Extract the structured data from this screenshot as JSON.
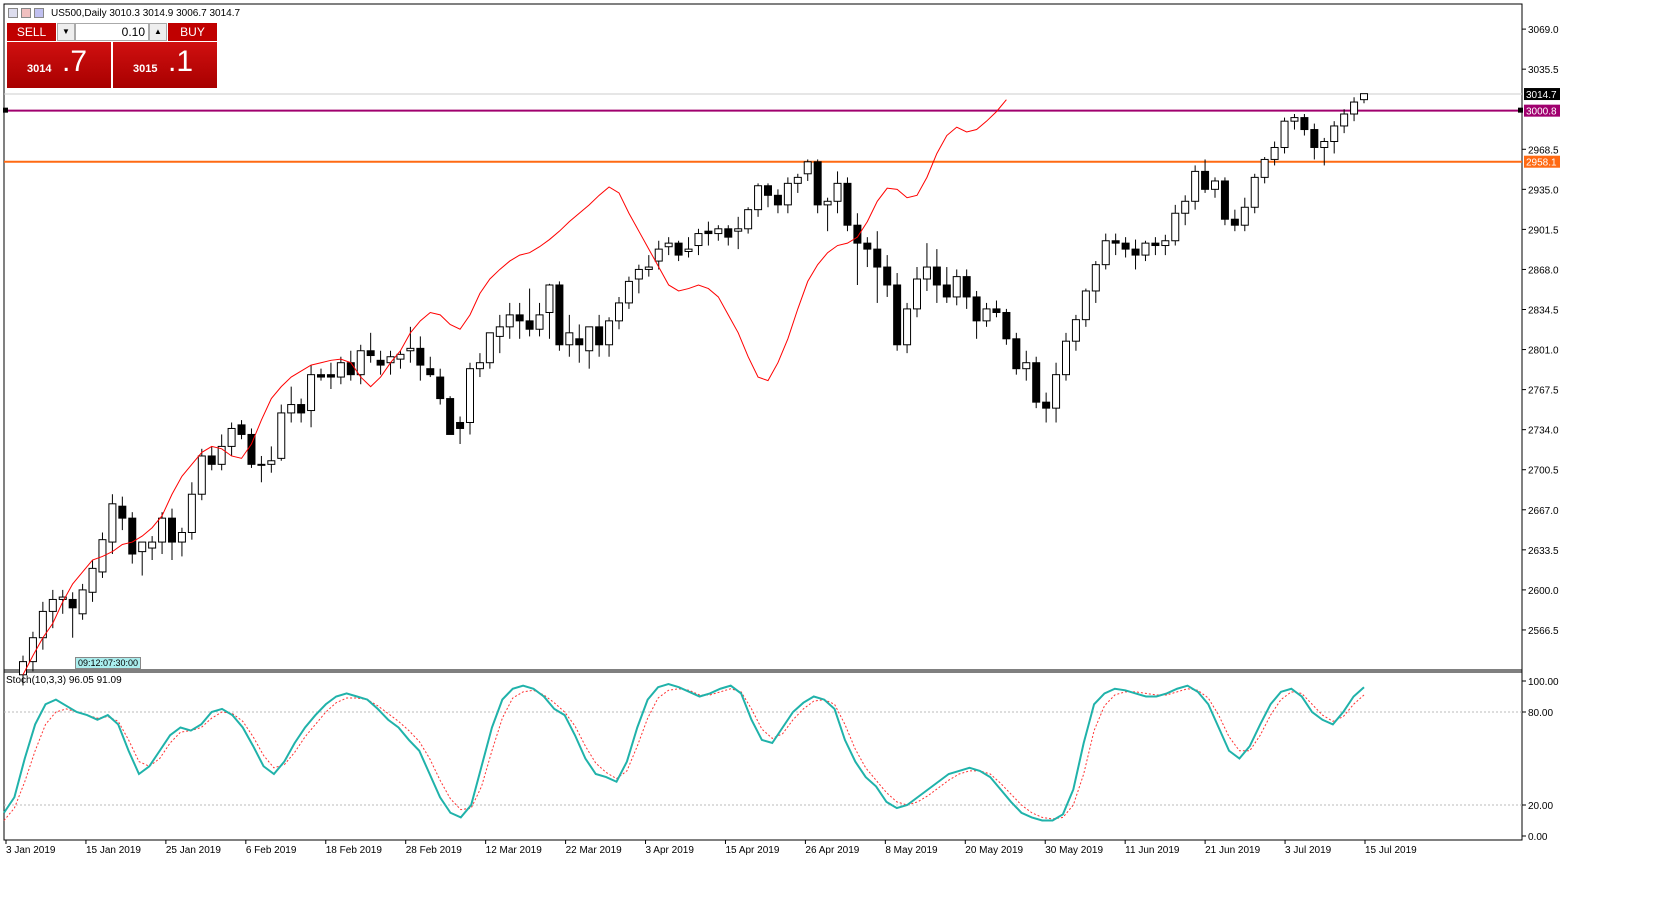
{
  "header": {
    "symbol_text": "US500,Daily  3010.3 3014.9 3006.7 3014.7",
    "icons": [
      "chart-icon",
      "one-click-icon",
      "trade-icon"
    ]
  },
  "trade_panel": {
    "sell_label": "SELL",
    "buy_label": "BUY",
    "lot_value": "0.10",
    "sell_price_big": "3014",
    "sell_price_small": ".7",
    "buy_price_big": "3015",
    "buy_price_small": ".1",
    "color": "#c00000"
  },
  "time_box": "09:12:07:30:00",
  "colors": {
    "resistance_line": "#a0006e",
    "support_line": "#ff6a13",
    "ma_line": "#ff0000",
    "stoch_main": "#20b2aa",
    "stoch_signal": "#ff3333"
  },
  "price_axis": {
    "ticks": [
      "3069.0",
      "3035.5",
      "2968.5",
      "2935.0",
      "2901.5",
      "2868.0",
      "2834.5",
      "2801.0",
      "2767.5",
      "2734.0",
      "2700.5",
      "2667.0",
      "2633.5",
      "2600.0",
      "2566.5"
    ]
  },
  "price_labels": {
    "last": "3014.7",
    "resistance": "3000.8",
    "support": "2958.1"
  },
  "time_axis": {
    "labels": [
      "3 Jan 2019",
      "15 Jan 2019",
      "25 Jan 2019",
      "6 Feb 2019",
      "18 Feb 2019",
      "28 Feb 2019",
      "12 Mar 2019",
      "22 Mar 2019",
      "3 Apr 2019",
      "15 Apr 2019",
      "26 Apr 2019",
      "8 May 2019",
      "20 May 2019",
      "30 May 2019",
      "11 Jun 2019",
      "21 Jun 2019",
      "3 Jul 2019",
      "15 Jul 2019"
    ]
  },
  "stoch": {
    "label": "Stoch(10,3,3) 96.05 91.09",
    "ticks": [
      "100.00",
      "80.00",
      "20.00",
      "0.00"
    ]
  },
  "chart_data": [
    {
      "type": "candlestick",
      "ylim": [
        2533,
        3090
      ],
      "levels": [
        3000.8,
        2958.1
      ],
      "last_price": 3014.7,
      "ma": [
        2529,
        2545,
        2560,
        2572,
        2590,
        2605,
        2615,
        2625,
        2628,
        2632,
        2638,
        2640,
        2645,
        2652,
        2662,
        2680,
        2695,
        2705,
        2715,
        2720,
        2718,
        2712,
        2710,
        2722,
        2742,
        2760,
        2770,
        2778,
        2783,
        2788,
        2790,
        2792,
        2793,
        2790,
        2778,
        2770,
        2778,
        2790,
        2800,
        2815,
        2825,
        2832,
        2830,
        2822,
        2818,
        2830,
        2848,
        2860,
        2868,
        2875,
        2880,
        2882,
        2887,
        2893,
        2900,
        2908,
        2915,
        2922,
        2930,
        2937,
        2932,
        2915,
        2900,
        2885,
        2870,
        2855,
        2850,
        2852,
        2855,
        2852,
        2845,
        2830,
        2815,
        2795,
        2778,
        2775,
        2790,
        2810,
        2835,
        2858,
        2872,
        2882,
        2888,
        2890,
        2895,
        2908,
        2925,
        2936,
        2935,
        2928,
        2930,
        2945,
        2965,
        2980,
        2987,
        2983,
        2985,
        2992,
        3000,
        3010
      ],
      "candles": [
        [
          2529,
          2545,
          2520,
          2540
        ],
        [
          2540,
          2565,
          2532,
          2560
        ],
        [
          2560,
          2590,
          2550,
          2582
        ],
        [
          2582,
          2600,
          2568,
          2592
        ],
        [
          2592,
          2600,
          2580,
          2594
        ],
        [
          2592,
          2598,
          2560,
          2585
        ],
        [
          2580,
          2605,
          2575,
          2600
        ],
        [
          2598,
          2625,
          2590,
          2618
        ],
        [
          2615,
          2648,
          2610,
          2642
        ],
        [
          2640,
          2680,
          2630,
          2672
        ],
        [
          2670,
          2678,
          2650,
          2660
        ],
        [
          2660,
          2665,
          2622,
          2630
        ],
        [
          2632,
          2640,
          2612,
          2640
        ],
        [
          2635,
          2645,
          2625,
          2640
        ],
        [
          2640,
          2665,
          2630,
          2660
        ],
        [
          2660,
          2668,
          2625,
          2640
        ],
        [
          2640,
          2652,
          2628,
          2648
        ],
        [
          2648,
          2690,
          2642,
          2680
        ],
        [
          2680,
          2718,
          2675,
          2712
        ],
        [
          2712,
          2720,
          2700,
          2705
        ],
        [
          2705,
          2730,
          2700,
          2720
        ],
        [
          2720,
          2740,
          2712,
          2735
        ],
        [
          2738,
          2742,
          2726,
          2730
        ],
        [
          2730,
          2735,
          2702,
          2705
        ],
        [
          2705,
          2712,
          2690,
          2705
        ],
        [
          2705,
          2720,
          2698,
          2708
        ],
        [
          2710,
          2755,
          2708,
          2748
        ],
        [
          2748,
          2770,
          2740,
          2755
        ],
        [
          2755,
          2760,
          2740,
          2748
        ],
        [
          2750,
          2788,
          2736,
          2780
        ],
        [
          2780,
          2785,
          2775,
          2778
        ],
        [
          2780,
          2790,
          2768,
          2778
        ],
        [
          2778,
          2795,
          2772,
          2790
        ],
        [
          2790,
          2800,
          2775,
          2780
        ],
        [
          2780,
          2805,
          2772,
          2800
        ],
        [
          2800,
          2815,
          2790,
          2796
        ],
        [
          2792,
          2800,
          2780,
          2788
        ],
        [
          2790,
          2800,
          2780,
          2795
        ],
        [
          2793,
          2800,
          2785,
          2797
        ],
        [
          2800,
          2820,
          2790,
          2802
        ],
        [
          2802,
          2812,
          2775,
          2788
        ],
        [
          2785,
          2795,
          2778,
          2780
        ],
        [
          2778,
          2785,
          2755,
          2760
        ],
        [
          2760,
          2762,
          2730,
          2730
        ],
        [
          2740,
          2745,
          2722,
          2735
        ],
        [
          2740,
          2790,
          2730,
          2785
        ],
        [
          2785,
          2798,
          2778,
          2790
        ],
        [
          2790,
          2815,
          2785,
          2815
        ],
        [
          2812,
          2830,
          2798,
          2820
        ],
        [
          2820,
          2840,
          2810,
          2830
        ],
        [
          2830,
          2840,
          2810,
          2825
        ],
        [
          2825,
          2852,
          2812,
          2818
        ],
        [
          2818,
          2840,
          2812,
          2830
        ],
        [
          2832,
          2856,
          2810,
          2855
        ],
        [
          2855,
          2858,
          2800,
          2805
        ],
        [
          2805,
          2830,
          2795,
          2815
        ],
        [
          2810,
          2822,
          2790,
          2805
        ],
        [
          2800,
          2815,
          2785,
          2820
        ],
        [
          2820,
          2830,
          2795,
          2805
        ],
        [
          2805,
          2828,
          2795,
          2825
        ],
        [
          2825,
          2845,
          2818,
          2840
        ],
        [
          2840,
          2862,
          2835,
          2858
        ],
        [
          2860,
          2872,
          2848,
          2868
        ],
        [
          2868,
          2880,
          2862,
          2870
        ],
        [
          2875,
          2892,
          2868,
          2885
        ],
        [
          2887,
          2895,
          2880,
          2890
        ],
        [
          2890,
          2892,
          2875,
          2880
        ],
        [
          2883,
          2895,
          2878,
          2885
        ],
        [
          2888,
          2902,
          2880,
          2898
        ],
        [
          2900,
          2908,
          2888,
          2898
        ],
        [
          2898,
          2905,
          2892,
          2902
        ],
        [
          2902,
          2905,
          2888,
          2895
        ],
        [
          2900,
          2912,
          2885,
          2902
        ],
        [
          2902,
          2920,
          2898,
          2918
        ],
        [
          2918,
          2940,
          2912,
          2938
        ],
        [
          2938,
          2940,
          2920,
          2930
        ],
        [
          2930,
          2935,
          2915,
          2922
        ],
        [
          2922,
          2945,
          2915,
          2940
        ],
        [
          2940,
          2948,
          2932,
          2945
        ],
        [
          2948,
          2960,
          2942,
          2958
        ],
        [
          2958,
          2960,
          2915,
          2922
        ],
        [
          2922,
          2928,
          2900,
          2925
        ],
        [
          2925,
          2950,
          2915,
          2940
        ],
        [
          2940,
          2945,
          2900,
          2905
        ],
        [
          2905,
          2915,
          2855,
          2890
        ],
        [
          2890,
          2895,
          2870,
          2885
        ],
        [
          2885,
          2900,
          2840,
          2870
        ],
        [
          2870,
          2880,
          2845,
          2855
        ],
        [
          2855,
          2865,
          2800,
          2805
        ],
        [
          2805,
          2840,
          2798,
          2835
        ],
        [
          2835,
          2870,
          2828,
          2860
        ],
        [
          2860,
          2890,
          2850,
          2870
        ],
        [
          2870,
          2885,
          2840,
          2855
        ],
        [
          2855,
          2870,
          2840,
          2845
        ],
        [
          2845,
          2868,
          2838,
          2862
        ],
        [
          2862,
          2868,
          2835,
          2845
        ],
        [
          2845,
          2850,
          2810,
          2825
        ],
        [
          2825,
          2840,
          2820,
          2835
        ],
        [
          2835,
          2842,
          2828,
          2832
        ],
        [
          2832,
          2835,
          2805,
          2810
        ],
        [
          2810,
          2815,
          2780,
          2785
        ],
        [
          2785,
          2800,
          2775,
          2790
        ],
        [
          2790,
          2795,
          2752,
          2757
        ],
        [
          2757,
          2765,
          2740,
          2752
        ],
        [
          2752,
          2790,
          2740,
          2780
        ],
        [
          2780,
          2815,
          2775,
          2808
        ],
        [
          2808,
          2830,
          2800,
          2826
        ],
        [
          2826,
          2852,
          2820,
          2850
        ],
        [
          2850,
          2875,
          2840,
          2872
        ],
        [
          2872,
          2898,
          2868,
          2892
        ],
        [
          2892,
          2898,
          2880,
          2890
        ],
        [
          2890,
          2895,
          2878,
          2885
        ],
        [
          2885,
          2893,
          2868,
          2880
        ],
        [
          2880,
          2892,
          2875,
          2890
        ],
        [
          2890,
          2895,
          2880,
          2888
        ],
        [
          2888,
          2897,
          2880,
          2892
        ],
        [
          2892,
          2922,
          2888,
          2915
        ],
        [
          2915,
          2930,
          2905,
          2925
        ],
        [
          2925,
          2955,
          2918,
          2950
        ],
        [
          2950,
          2960,
          2932,
          2935
        ],
        [
          2935,
          2945,
          2928,
          2942
        ],
        [
          2942,
          2945,
          2905,
          2910
        ],
        [
          2910,
          2918,
          2900,
          2905
        ],
        [
          2905,
          2928,
          2900,
          2920
        ],
        [
          2920,
          2948,
          2915,
          2945
        ],
        [
          2945,
          2962,
          2940,
          2960
        ],
        [
          2960,
          2975,
          2955,
          2970
        ],
        [
          2970,
          2995,
          2965,
          2992
        ],
        [
          2992,
          2998,
          2985,
          2995
        ],
        [
          2995,
          2998,
          2980,
          2985
        ],
        [
          2985,
          2990,
          2960,
          2970
        ],
        [
          2970,
          2978,
          2955,
          2975
        ],
        [
          2975,
          2992,
          2965,
          2988
        ],
        [
          2988,
          3002,
          2982,
          2998
        ],
        [
          2998,
          3012,
          2992,
          3008
        ],
        [
          3010,
          3015,
          3007,
          3015
        ]
      ]
    },
    {
      "type": "line",
      "ylim": [
        0,
        100
      ],
      "series": [
        {
          "values": [
            15,
            25,
            50,
            72,
            85,
            88,
            84,
            80,
            78,
            75,
            78,
            72,
            55,
            40,
            45,
            55,
            65,
            70,
            68,
            72,
            80,
            82,
            78,
            70,
            58,
            45,
            40,
            48,
            60,
            70,
            78,
            85,
            90,
            92,
            90,
            88,
            82,
            75,
            70,
            62,
            55,
            40,
            25,
            15,
            12,
            20,
            45,
            70,
            88,
            95,
            97,
            95,
            90,
            82,
            78,
            65,
            50,
            40,
            38,
            35,
            48,
            70,
            88,
            96,
            98,
            96,
            93,
            90,
            92,
            95,
            97,
            92,
            75,
            62,
            60,
            70,
            80,
            86,
            90,
            88,
            82,
            62,
            48,
            38,
            32,
            22,
            18,
            20,
            25,
            30,
            35,
            40,
            42,
            44,
            42,
            38,
            30,
            22,
            15,
            12,
            10,
            10,
            14,
            30,
            60,
            85,
            92,
            95,
            94,
            92,
            90,
            90,
            92,
            95,
            97,
            93,
            85,
            70,
            55,
            50,
            58,
            72,
            85,
            93,
            95,
            90,
            80,
            75,
            72,
            80,
            90,
            96
          ]
        },
        {
          "values": [
            10,
            18,
            35,
            55,
            72,
            80,
            82,
            80,
            78,
            76,
            77,
            74,
            62,
            48,
            45,
            50,
            60,
            67,
            68,
            70,
            76,
            80,
            79,
            74,
            64,
            52,
            44,
            46,
            54,
            64,
            72,
            80,
            86,
            89,
            89,
            88,
            84,
            79,
            74,
            68,
            61,
            50,
            36,
            24,
            17,
            18,
            32,
            55,
            76,
            89,
            93,
            94,
            91,
            86,
            80,
            71,
            58,
            47,
            41,
            37,
            42,
            58,
            76,
            89,
            94,
            95,
            94,
            91,
            91,
            93,
            95,
            93,
            82,
            69,
            63,
            66,
            75,
            82,
            87,
            88,
            85,
            72,
            56,
            44,
            36,
            28,
            22,
            20,
            22,
            26,
            31,
            36,
            40,
            42,
            42,
            40,
            34,
            27,
            20,
            15,
            12,
            11,
            12,
            20,
            40,
            68,
            84,
            91,
            93,
            93,
            92,
            91,
            91,
            93,
            95,
            94,
            89,
            78,
            64,
            55,
            55,
            65,
            78,
            88,
            93,
            92,
            85,
            78,
            74,
            77,
            85,
            91
          ]
        }
      ]
    }
  ]
}
